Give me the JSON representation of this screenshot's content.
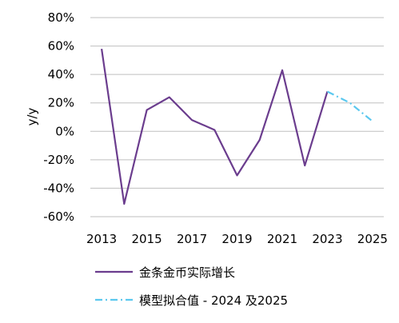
{
  "chart_data": {
    "type": "line",
    "ylabel": "y/y",
    "xlabel": "",
    "xlim": [
      2012.5,
      2025.5
    ],
    "ylim": [
      -60,
      80
    ],
    "y_ticks": [
      80,
      60,
      40,
      20,
      0,
      -20,
      -40,
      -60
    ],
    "y_tick_labels": [
      "80%",
      "60%",
      "40%",
      "20%",
      "0%",
      "-20%",
      "-40%",
      "-60%"
    ],
    "x_ticks": [
      2013,
      2015,
      2017,
      2019,
      2021,
      2023,
      2025
    ],
    "x_tick_labels": [
      "2013",
      "2015",
      "2017",
      "2019",
      "2021",
      "2023",
      "2025"
    ],
    "grid": true,
    "legend_position": "bottom",
    "series": [
      {
        "name": "金条金币实际增长",
        "style": "solid",
        "color": "#6b3d8e",
        "x": [
          2013,
          2014,
          2015,
          2016,
          2017,
          2018,
          2019,
          2020,
          2021,
          2022,
          2023
        ],
        "values": [
          58,
          -51,
          15,
          24,
          8,
          1,
          -31,
          -6,
          43,
          -24,
          28
        ]
      },
      {
        "name": "模型拟合值 - 2024 及2025",
        "style": "dashdot",
        "color": "#5bc8ef",
        "x": [
          2023,
          2024,
          2025
        ],
        "values": [
          28,
          20,
          7
        ]
      }
    ]
  }
}
